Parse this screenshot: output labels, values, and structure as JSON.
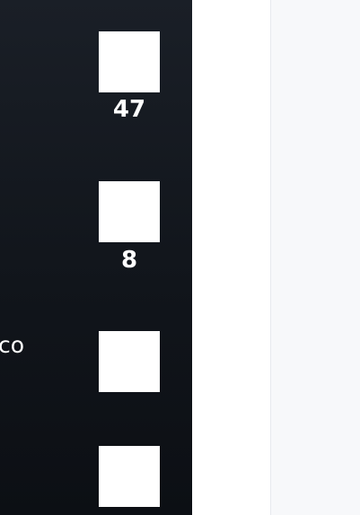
{
  "left_panel": {
    "tiles": [
      {
        "count": "47"
      },
      {
        "count": "8"
      },
      {
        "count": null
      },
      {
        "count": null
      }
    ],
    "cut_label": "co"
  },
  "colors": {
    "panel_top": "#1a1f27",
    "panel_bottom": "#0c0f14",
    "tile": "#ffffff",
    "right_pane": "#f7f8fa"
  }
}
